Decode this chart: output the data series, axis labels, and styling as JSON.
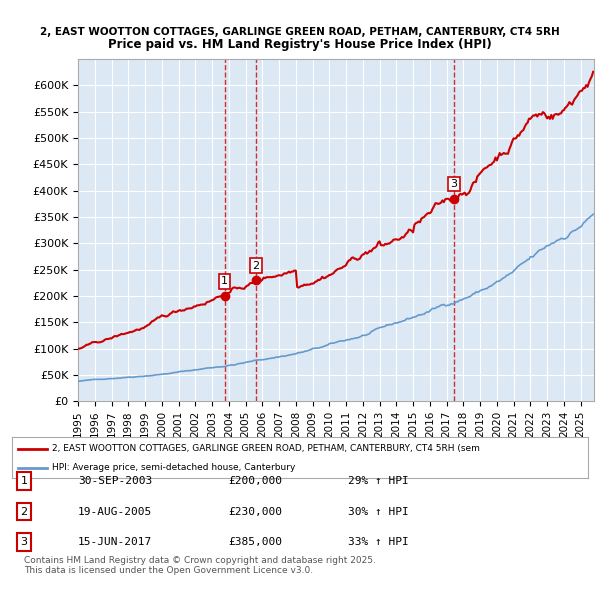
{
  "title_line1": "2, EAST WOOTTON COTTAGES, GARLINGE GREEN ROAD, PETHAM, CANTERBURY, CT4 5RH",
  "title_line2": "Price paid vs. HM Land Registry's House Price Index (HPI)",
  "ylabel": "",
  "xlim_start": 1995.0,
  "xlim_end": 2025.8,
  "ylim_min": 0,
  "ylim_max": 650000,
  "yticks": [
    0,
    50000,
    100000,
    150000,
    200000,
    250000,
    300000,
    350000,
    400000,
    450000,
    500000,
    550000,
    600000
  ],
  "background_color": "#dce9f5",
  "plot_bg_color": "#dce9f5",
  "hpi_color": "#6699cc",
  "price_color": "#cc0000",
  "sale_marker_color": "#cc0000",
  "vline_color": "#cc0000",
  "sales": [
    {
      "label": 1,
      "date_x": 2003.75,
      "price": 200000,
      "date_str": "30-SEP-2003",
      "price_str": "£200,000",
      "hpi_str": "29% ↑ HPI"
    },
    {
      "label": 2,
      "date_x": 2005.63,
      "price": 230000,
      "date_str": "19-AUG-2005",
      "price_str": "£230,000",
      "hpi_str": "30% ↑ HPI"
    },
    {
      "label": 3,
      "date_x": 2017.45,
      "price": 385000,
      "date_str": "15-JUN-2017",
      "price_str": "£385,000",
      "hpi_str": "33% ↑ HPI"
    }
  ],
  "legend_label_price": "2, EAST WOOTTON COTTAGES, GARLINGE GREEN ROAD, PETHAM, CANTERBURY, CT4 5RH (sem",
  "legend_label_hpi": "HPI: Average price, semi-detached house, Canterbury",
  "footer_text": "Contains HM Land Registry data © Crown copyright and database right 2025.\nThis data is licensed under the Open Government Licence v3.0."
}
